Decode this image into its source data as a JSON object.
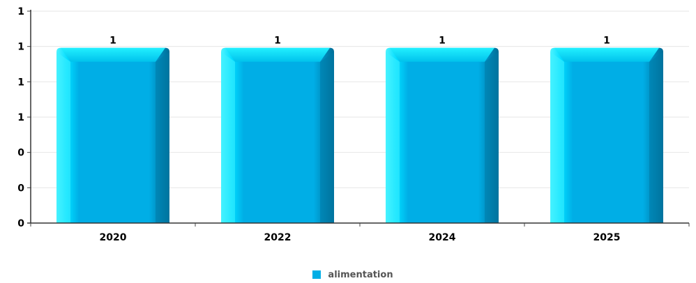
{
  "chart_data": {
    "type": "bar",
    "categories": [
      "2020",
      "2022",
      "2024",
      "2025"
    ],
    "series": [
      {
        "name": "alimentation",
        "values": [
          1,
          1,
          1,
          1
        ],
        "data_labels": [
          "1",
          "1",
          "1",
          "1"
        ],
        "color": "#00aee6"
      }
    ],
    "y_tick_labels": [
      "0",
      "0",
      "0",
      "1",
      "1",
      "1",
      "1"
    ],
    "ylim": [
      0,
      1.2
    ],
    "y_ticks": [
      0,
      0.2,
      0.4,
      0.6,
      0.8,
      1.0,
      1.2
    ],
    "grid": true,
    "legend_position": "bottom-center",
    "title": "",
    "xlabel": "",
    "ylabel": ""
  }
}
